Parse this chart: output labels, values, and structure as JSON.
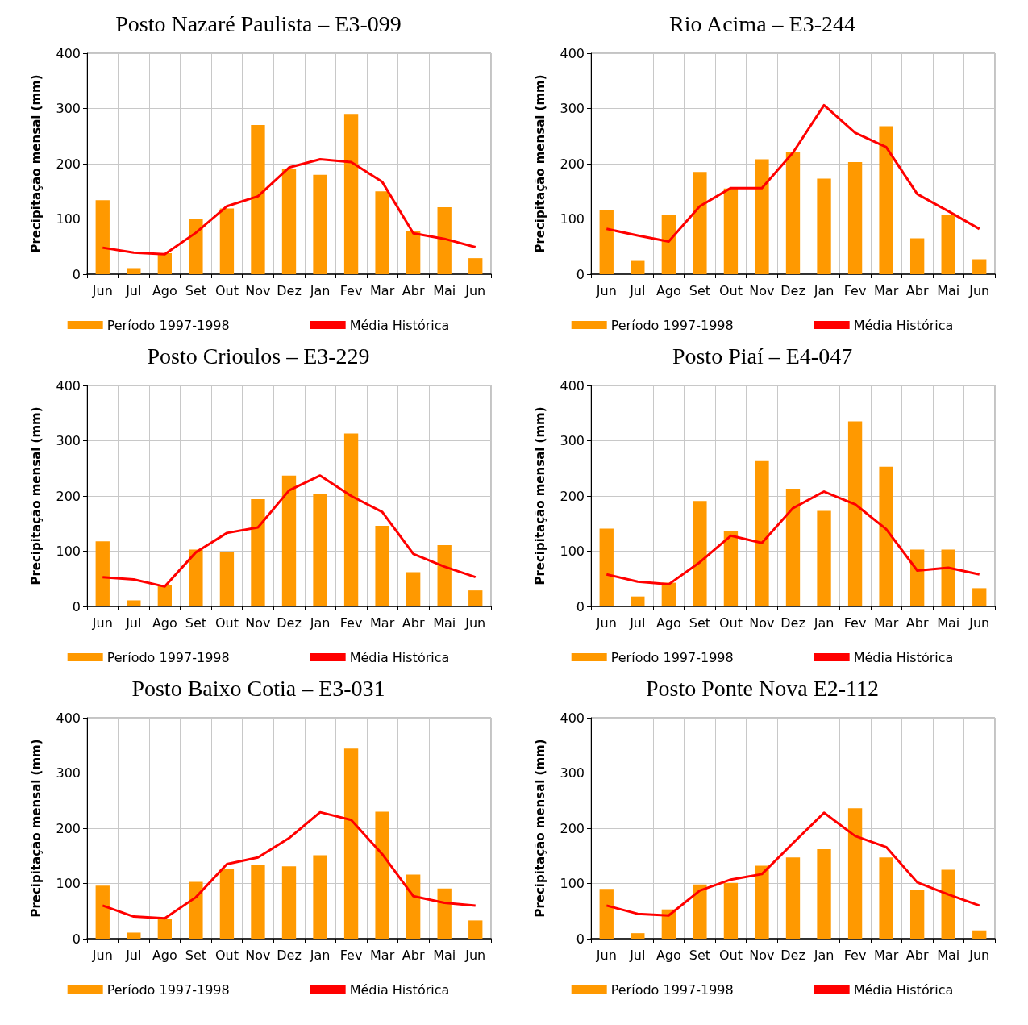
{
  "chart_data": [
    {
      "type": "bar",
      "title": "Posto Nazaré Paulista – E3-099",
      "ylabel": "Precipitação mensal (mm)",
      "categories": [
        "Jun",
        "Jul",
        "Ago",
        "Set",
        "Out",
        "Nov",
        "Dez",
        "Jan",
        "Fev",
        "Mar",
        "Abr",
        "Mai",
        "Jun"
      ],
      "ylim": [
        0,
        400
      ],
      "yticks": [
        0,
        100,
        200,
        300,
        400
      ],
      "grid": true,
      "legend": "bottom",
      "series": [
        {
          "name": "Período 1997-1998",
          "color": "#ff9900",
          "values": [
            134,
            11,
            38,
            100,
            119,
            270,
            191,
            180,
            290,
            150,
            78,
            121,
            29
          ]
        },
        {
          "name": "Média Histórica",
          "type": "line",
          "color": "#ff0000",
          "values": [
            48,
            39,
            36,
            75,
            123,
            141,
            193,
            208,
            203,
            167,
            74,
            64,
            49
          ]
        }
      ]
    },
    {
      "type": "bar",
      "title": "Rio Acima – E3-244",
      "ylabel": "Precipitação mensal (mm)",
      "categories": [
        "Jun",
        "Jul",
        "Ago",
        "Set",
        "Out",
        "Nov",
        "Dez",
        "Jan",
        "Fev",
        "Mar",
        "Abr",
        "Mai",
        "Jun"
      ],
      "ylim": [
        0,
        400
      ],
      "yticks": [
        0,
        100,
        200,
        300,
        400
      ],
      "grid": true,
      "legend": "bottom",
      "series": [
        {
          "name": "Período 1997-1998",
          "color": "#ff9900",
          "values": [
            116,
            24,
            108,
            185,
            155,
            208,
            221,
            173,
            203,
            268,
            65,
            108,
            27
          ]
        },
        {
          "name": "Média Histórica",
          "type": "line",
          "color": "#ff0000",
          "values": [
            82,
            70,
            59,
            123,
            156,
            156,
            220,
            306,
            256,
            230,
            145,
            114,
            82
          ]
        }
      ]
    },
    {
      "type": "bar",
      "title": "Posto Crioulos – E3-229",
      "ylabel": "Precipitação mensal (mm)",
      "categories": [
        "Jun",
        "Jul",
        "Ago",
        "Set",
        "Out",
        "Nov",
        "Dez",
        "Jan",
        "Fev",
        "Mar",
        "Abr",
        "Mai",
        "Jun"
      ],
      "ylim": [
        0,
        400
      ],
      "yticks": [
        0,
        100,
        200,
        300,
        400
      ],
      "grid": true,
      "legend": "bottom",
      "series": [
        {
          "name": "Período 1997-1998",
          "color": "#ff9900",
          "values": [
            118,
            11,
            39,
            103,
            98,
            194,
            237,
            204,
            313,
            146,
            62,
            111,
            29
          ]
        },
        {
          "name": "Média Histórica",
          "type": "line",
          "color": "#ff0000",
          "values": [
            53,
            49,
            36,
            98,
            133,
            143,
            210,
            237,
            200,
            171,
            95,
            72,
            53
          ]
        }
      ]
    },
    {
      "type": "bar",
      "title": "Posto Piaí – E4-047",
      "ylabel": "Precipitação mensal (mm)",
      "categories": [
        "Jun",
        "Jul",
        "Ago",
        "Set",
        "Out",
        "Nov",
        "Dez",
        "Jan",
        "Fev",
        "Mar",
        "Abr",
        "Mai",
        "Jun"
      ],
      "ylim": [
        0,
        400
      ],
      "yticks": [
        0,
        100,
        200,
        300,
        400
      ],
      "grid": true,
      "legend": "bottom",
      "series": [
        {
          "name": "Período 1997-1998",
          "color": "#ff9900",
          "values": [
            141,
            18,
            43,
            191,
            136,
            263,
            213,
            173,
            335,
            253,
            103,
            103,
            33
          ]
        },
        {
          "name": "Média Histórica",
          "type": "line",
          "color": "#ff0000",
          "values": [
            58,
            45,
            40,
            80,
            128,
            115,
            178,
            208,
            185,
            140,
            65,
            70,
            58
          ]
        }
      ]
    },
    {
      "type": "bar",
      "title": "Posto Baixo Cotia – E3-031",
      "ylabel": "Precipitação mensal (mm)",
      "categories": [
        "Jun",
        "Jul",
        "Ago",
        "Set",
        "Out",
        "Nov",
        "Dez",
        "Jan",
        "Fev",
        "Mar",
        "Abr",
        "Mai",
        "Jun"
      ],
      "ylim": [
        0,
        400
      ],
      "yticks": [
        0,
        100,
        200,
        300,
        400
      ],
      "grid": true,
      "legend": "bottom",
      "series": [
        {
          "name": "Período 1997-1998",
          "color": "#ff9900",
          "values": [
            96,
            11,
            36,
            103,
            126,
            133,
            131,
            151,
            344,
            230,
            116,
            91,
            33
          ]
        },
        {
          "name": "Média Histórica",
          "type": "line",
          "color": "#ff0000",
          "values": [
            60,
            40,
            37,
            75,
            135,
            147,
            182,
            229,
            215,
            153,
            77,
            65,
            60
          ]
        }
      ]
    },
    {
      "type": "bar",
      "title": "Posto Ponte Nova E2-112",
      "ylabel": "Precipitação mensal (mm)",
      "categories": [
        "Jun",
        "Jul",
        "Ago",
        "Set",
        "Out",
        "Nov",
        "Dez",
        "Jan",
        "Fev",
        "Mar",
        "Abr",
        "Mai",
        "Jun"
      ],
      "ylim": [
        0,
        400
      ],
      "yticks": [
        0,
        100,
        200,
        300,
        400
      ],
      "grid": true,
      "legend": "bottom",
      "series": [
        {
          "name": "Período 1997-1998",
          "color": "#ff9900",
          "values": [
            90,
            10,
            53,
            98,
            101,
            132,
            147,
            162,
            236,
            147,
            88,
            125,
            15
          ]
        },
        {
          "name": "Média Histórica",
          "type": "line",
          "color": "#ff0000",
          "values": [
            60,
            45,
            42,
            87,
            107,
            117,
            173,
            228,
            186,
            166,
            102,
            80,
            60
          ]
        }
      ]
    }
  ]
}
